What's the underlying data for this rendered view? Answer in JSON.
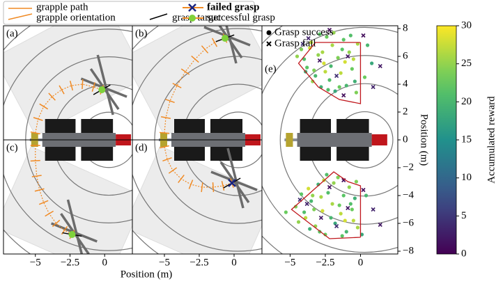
{
  "legend": {
    "items": [
      "grapple path",
      "grapple orientation",
      "grasp target",
      "failed grasp",
      "successful grasp"
    ]
  },
  "left_xlabel": "Position (m)",
  "chart_data": [
    {
      "type": "line",
      "label": "(a)",
      "xlim": [
        -7.3,
        2
      ],
      "ylim": [
        0,
        8.2
      ],
      "series": [
        {
          "x": [
            -5.0,
            -4.8,
            -4.4,
            -3.8,
            -3.1,
            -2.4,
            -1.6,
            -0.8,
            -0.2
          ],
          "y": [
            0.5,
            1.5,
            2.4,
            3.1,
            3.6,
            3.9,
            4.0,
            3.8,
            3.6
          ],
          "color": "#f08a24"
        }
      ],
      "grasp": {
        "x": -0.2,
        "y": 3.6,
        "success": true,
        "target_angle": 30
      }
    },
    {
      "type": "line",
      "label": "(b)",
      "xlim": [
        -7.3,
        2
      ],
      "ylim": [
        0,
        8.2
      ],
      "series": [
        {
          "x": [
            -5.0,
            -4.9,
            -4.6,
            -4.1,
            -3.5,
            -2.8,
            -2.1,
            -1.4,
            -0.65
          ],
          "y": [
            0.5,
            1.6,
            2.8,
            3.9,
            4.9,
            5.8,
            6.5,
            7.0,
            7.3
          ],
          "color": "#f08a24"
        }
      ],
      "grasp": {
        "x": -0.65,
        "y": 7.3,
        "success": true,
        "target_angle": 20
      }
    },
    {
      "type": "line",
      "label": "(c)",
      "xlim": [
        -7.3,
        2
      ],
      "ylim": [
        -8.2,
        0
      ],
      "xticks": [
        {
          "value": -5,
          "label": "−5"
        },
        {
          "value": -2.5,
          "label": "−2.5"
        },
        0
      ],
      "series": [
        {
          "x": [
            -5.0,
            -5.0,
            -4.9,
            -4.7,
            -4.4,
            -4.0,
            -3.5,
            -2.9,
            -2.35
          ],
          "y": [
            -0.4,
            -1.5,
            -2.6,
            -3.6,
            -4.5,
            -5.3,
            -6.0,
            -6.5,
            -6.8
          ],
          "color": "#f08a24"
        }
      ],
      "grasp": {
        "x": -2.35,
        "y": -6.8,
        "success": true,
        "target_angle": -10
      }
    },
    {
      "type": "line",
      "label": "(d)",
      "xlim": [
        -7.3,
        2
      ],
      "ylim": [
        -8.2,
        0
      ],
      "xticks": [
        {
          "value": -5,
          "label": "−5"
        },
        {
          "value": -2.5,
          "label": "−2.5"
        },
        0
      ],
      "series": [
        {
          "x": [
            -5.0,
            -4.8,
            -4.4,
            -3.8,
            -3.1,
            -2.3,
            -1.5,
            -0.8,
            -0.15
          ],
          "y": [
            -0.5,
            -1.4,
            -2.2,
            -2.8,
            -3.2,
            -3.4,
            -3.4,
            -3.3,
            -3.1
          ],
          "color": "#f08a24"
        }
      ],
      "grasp": {
        "x": -0.15,
        "y": -3.1,
        "success": false,
        "target_angle": 30
      }
    },
    {
      "type": "scatter",
      "label": "(e)",
      "xlim": [
        -7,
        2.65
      ],
      "ylim": [
        -8.2,
        8.2
      ],
      "xticks": [
        {
          "value": -5,
          "label": "−5"
        },
        {
          "value": -2.5,
          "label": "−2.5"
        },
        0
      ],
      "yticks": [
        8,
        6,
        4,
        2,
        0,
        {
          "value": -2,
          "label": "−2"
        },
        {
          "value": -4,
          "label": "−4"
        },
        {
          "value": -6,
          "label": "−6"
        },
        {
          "value": -8,
          "label": "−8"
        }
      ],
      "ylabel": "Position (m)",
      "regions": [
        {
          "x": [
            0,
            -3.2,
            -4.4,
            -3.0,
            -1.5,
            0,
            0
          ],
          "y": [
            7,
            7,
            5.5,
            3.8,
            2.9,
            2.6,
            7
          ]
        },
        {
          "x": [
            0,
            -2.2,
            -4.9,
            -1.9,
            -0.9,
            0,
            0
          ],
          "y": [
            -7,
            -7.1,
            -5,
            -2.3,
            -3.0,
            -3.3,
            -7
          ]
        }
      ],
      "series": [
        {
          "name": "Grasp success",
          "marker": "circle",
          "x": [
            -4.2,
            -3.8,
            -3.5,
            -3.2,
            -3.0,
            -2.8,
            -2.6,
            -2.4,
            -2.2,
            -2.0,
            -1.8,
            -1.6,
            -1.4,
            -1.2,
            -1.0,
            -0.8,
            -0.6,
            -0.4,
            -0.2,
            -4.0,
            -3.6,
            -3.3,
            -2.9,
            -2.5,
            -2.1,
            -1.9,
            -1.5,
            -1.1,
            -0.7,
            -0.3,
            -4.5,
            -3.9,
            -2.7,
            -1.3,
            -0.5,
            0.5,
            0.3,
            0.8,
            -3.4,
            -2.3,
            -4.6,
            -4.2,
            -3.9,
            -3.5,
            -3.2,
            -3.0,
            -2.7,
            -2.5,
            -2.3,
            -2.0,
            -1.8,
            -1.6,
            -1.4,
            -1.2,
            -1.0,
            -0.8,
            -0.6,
            -0.4,
            -0.2,
            -4.0,
            -3.7,
            -3.3,
            -2.9,
            -2.6,
            -2.1,
            -1.9,
            -1.5,
            -1.1,
            -0.7,
            -0.3,
            -4.4,
            -3.6,
            -2.8,
            -1.3,
            -0.5,
            0.4,
            -5.3,
            0.1,
            -3.4,
            -2.4
          ],
          "y": [
            6.5,
            5.2,
            7.0,
            4.6,
            6.1,
            3.8,
            5.5,
            7.4,
            4.3,
            6.8,
            3.5,
            5.9,
            4.8,
            7.2,
            3.9,
            6.3,
            5.1,
            4.2,
            6.9,
            5.8,
            6.6,
            5.0,
            7.6,
            4.9,
            5.3,
            7.7,
            3.8,
            5.6,
            7.5,
            3.4,
            6.0,
            4.9,
            6.3,
            6.5,
            5.8,
            6.8,
            4.5,
            5.5,
            4.2,
            3.6,
            -4.8,
            -3.9,
            -5.6,
            -4.4,
            -6.2,
            -3.2,
            -5.1,
            -6.8,
            -3.8,
            -4.6,
            -6.0,
            -2.7,
            -5.3,
            -4.0,
            -6.6,
            -3.4,
            -5.0,
            -4.2,
            -6.3,
            -5.2,
            -3.5,
            -5.0,
            -6.6,
            -2.9,
            -5.6,
            -3.1,
            -4.7,
            -5.8,
            -4.6,
            -3.0,
            -5.9,
            -6.4,
            -4.1,
            -6.9,
            -5.8,
            -4.0,
            -5.2,
            -6.8,
            -4.0,
            -2.5
          ],
          "reward": [
            24,
            22,
            27,
            20,
            25,
            19,
            28,
            23,
            21,
            26,
            18,
            24,
            27,
            22,
            20,
            25,
            23,
            19,
            26,
            21,
            28,
            24,
            22,
            27,
            20,
            25,
            23,
            28,
            21,
            24,
            25,
            19,
            26,
            22,
            27,
            20,
            23,
            18,
            25,
            21,
            24,
            22,
            27,
            20,
            25,
            19,
            28,
            23,
            21,
            26,
            18,
            24,
            27,
            22,
            20,
            25,
            23,
            19,
            26,
            21,
            28,
            24,
            22,
            27,
            20,
            25,
            23,
            28,
            21,
            24,
            25,
            19,
            26,
            22,
            27,
            20,
            23,
            18,
            25,
            21
          ]
        },
        {
          "name": "Grasp fail",
          "marker": "x",
          "x": [
            -3.7,
            -2.9,
            -2.2,
            -1.7,
            -0.9,
            0.2,
            0.9,
            1.4,
            -4.1,
            -1.2,
            -3.8,
            -2.8,
            -2.2,
            -1.7,
            -0.9,
            0.2,
            0.9,
            1.4,
            -4.3,
            -1.2
          ],
          "y": [
            7.3,
            5.7,
            7.9,
            4.6,
            6.0,
            7.5,
            3.8,
            5.3,
            6.9,
            3.2,
            -4.6,
            -5.6,
            -3.4,
            -6.2,
            -4.9,
            -3.6,
            -5.0,
            -6.1,
            -4.3,
            -2.9
          ],
          "reward": [
            3,
            2,
            1,
            4,
            2,
            1,
            3,
            2,
            4,
            1,
            3,
            2,
            1,
            4,
            2,
            1,
            3,
            2,
            4,
            1
          ]
        }
      ],
      "colorbar": {
        "label": "Accumulated reward",
        "lim": [
          0,
          30
        ],
        "ticks": [
          0,
          5,
          10,
          15,
          20,
          25,
          30
        ]
      }
    }
  ]
}
